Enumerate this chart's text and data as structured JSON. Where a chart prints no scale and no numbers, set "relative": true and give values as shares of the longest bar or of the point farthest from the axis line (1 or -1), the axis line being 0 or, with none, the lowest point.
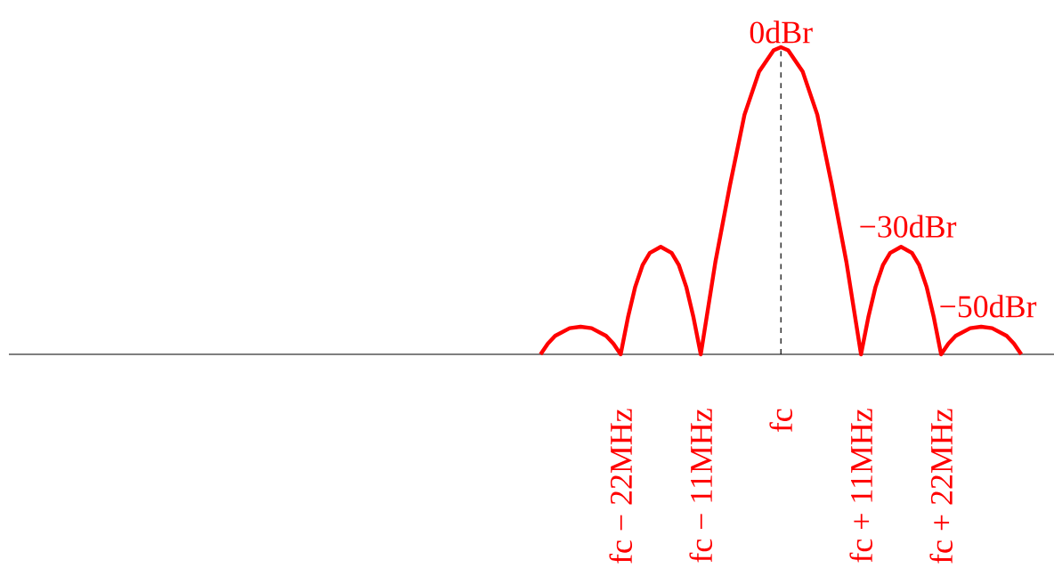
{
  "chart_data": {
    "type": "line",
    "relative": true,
    "color": "#ff0000",
    "x": [
      -33,
      -32,
      -31,
      -29,
      -27.5,
      -26,
      -24,
      -23,
      -22,
      -21,
      -20,
      -19,
      -18,
      -16.5,
      -15,
      -14,
      -13,
      -12,
      -11,
      -9,
      -7,
      -5,
      -3,
      -1,
      0,
      1,
      3,
      5,
      7,
      9,
      11,
      12,
      13,
      14,
      15,
      16.5,
      18,
      19,
      20,
      21,
      22,
      23,
      24,
      26,
      27.5,
      29,
      31,
      32,
      33
    ],
    "values": [
      0,
      0.035,
      0.06,
      0.085,
      0.09,
      0.085,
      0.06,
      0.035,
      0,
      0.12,
      0.22,
      0.29,
      0.33,
      0.35,
      0.33,
      0.29,
      0.22,
      0.12,
      0,
      0.3,
      0.55,
      0.78,
      0.92,
      0.99,
      1,
      0.99,
      0.92,
      0.78,
      0.55,
      0.3,
      0,
      0.12,
      0.22,
      0.29,
      0.33,
      0.35,
      0.33,
      0.29,
      0.22,
      0.12,
      0,
      0.035,
      0.06,
      0.085,
      0.09,
      0.085,
      0.06,
      0.035,
      0
    ],
    "xlim": [
      -106,
      37.5
    ],
    "xticks": [
      {
        "value": -22,
        "label": "fc − 22MHz"
      },
      {
        "value": -11,
        "label": "fc − 11MHz"
      },
      {
        "value": 0,
        "label": "fc"
      },
      {
        "value": 11,
        "label": "fc + 11MHz"
      },
      {
        "value": 22,
        "label": "fc + 22MHz"
      }
    ],
    "annotations": [
      {
        "text": "0dBr",
        "x": 0,
        "y": 1
      },
      {
        "text": "−30dBr",
        "x": 16.5,
        "y": 0.35
      },
      {
        "text": "−50dBr",
        "x": 27.5,
        "y": 0.09
      }
    ],
    "ref_lines": [
      {
        "axis": "x",
        "value": 0,
        "color": "#000000",
        "line_style": "dashed"
      }
    ]
  }
}
